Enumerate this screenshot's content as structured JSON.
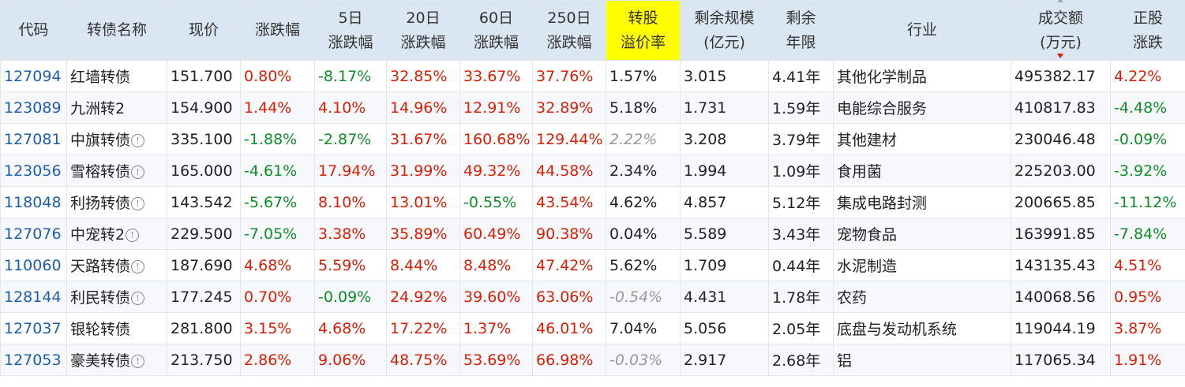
{
  "headers": {
    "code": "代码",
    "name": "转债名称",
    "price": "现价",
    "change": "涨跌幅",
    "chg5_l1": "5日",
    "chg5_l2": "涨跌幅",
    "chg20_l1": "20日",
    "chg20_l2": "涨跌幅",
    "chg60_l1": "60日",
    "chg60_l2": "涨跌幅",
    "chg250_l1": "250日",
    "chg250_l2": "涨跌幅",
    "premium_l1": "转股",
    "premium_l2": "溢价率",
    "scale_l1": "剩余规模",
    "scale_l2": "(亿元)",
    "years_l1": "剩余",
    "years_l2": "年限",
    "industry": "行业",
    "volume_l1": "成交额",
    "volume_l2": "(万元)",
    "stock_l1": "正股",
    "stock_l2": "涨跌"
  },
  "colors": {
    "header_bg": "#dbe6f3",
    "highlight_header": "#ffff00",
    "up": "#d81e06",
    "down": "#128b2a",
    "code_link": "#1f5ea8",
    "muted": "#999999"
  },
  "rows": [
    {
      "code": "127094",
      "name": "红墙转债",
      "info": false,
      "price": "151.700",
      "change": "0.80%",
      "chg5": "-8.17%",
      "chg20": "32.85%",
      "chg60": "33.67%",
      "chg250": "37.76%",
      "premium": "1.57%",
      "premium_muted": false,
      "scale": "3.015",
      "years": "4.41年",
      "industry": "其他化学制品",
      "volume": "495382.17",
      "stock": "4.22%"
    },
    {
      "code": "123089",
      "name": "九洲转2",
      "info": false,
      "price": "154.900",
      "change": "1.44%",
      "chg5": "4.10%",
      "chg20": "14.96%",
      "chg60": "12.91%",
      "chg250": "32.89%",
      "premium": "5.18%",
      "premium_muted": false,
      "scale": "1.731",
      "years": "1.59年",
      "industry": "电能综合服务",
      "volume": "410817.83",
      "stock": "-4.48%"
    },
    {
      "code": "127081",
      "name": "中旗转债",
      "info": true,
      "price": "335.100",
      "change": "-1.88%",
      "chg5": "-2.87%",
      "chg20": "31.67%",
      "chg60": "160.68%",
      "chg250": "129.44%",
      "premium": "2.22%",
      "premium_muted": true,
      "scale": "3.208",
      "years": "3.79年",
      "industry": "其他建材",
      "volume": "230046.48",
      "stock": "-0.09%"
    },
    {
      "code": "123056",
      "name": "雪榕转债",
      "info": true,
      "price": "165.000",
      "change": "-4.61%",
      "chg5": "17.94%",
      "chg20": "31.99%",
      "chg60": "49.32%",
      "chg250": "44.58%",
      "premium": "2.34%",
      "premium_muted": false,
      "scale": "1.994",
      "years": "1.09年",
      "industry": "食用菌",
      "volume": "225203.00",
      "stock": "-3.92%"
    },
    {
      "code": "118048",
      "name": "利扬转债",
      "info": true,
      "price": "143.542",
      "change": "-5.67%",
      "chg5": "8.10%",
      "chg20": "13.01%",
      "chg60": "-0.55%",
      "chg250": "43.54%",
      "premium": "4.62%",
      "premium_muted": false,
      "scale": "4.857",
      "years": "5.12年",
      "industry": "集成电路封测",
      "volume": "200665.85",
      "stock": "-11.12%"
    },
    {
      "code": "127076",
      "name": "中宠转2",
      "info": true,
      "price": "229.500",
      "change": "-7.05%",
      "chg5": "3.38%",
      "chg20": "35.89%",
      "chg60": "60.49%",
      "chg250": "90.38%",
      "premium": "0.04%",
      "premium_muted": false,
      "scale": "5.589",
      "years": "3.43年",
      "industry": "宠物食品",
      "volume": "163991.85",
      "stock": "-7.84%"
    },
    {
      "code": "110060",
      "name": "天路转债",
      "info": true,
      "price": "187.690",
      "change": "4.68%",
      "chg5": "5.59%",
      "chg20": "8.44%",
      "chg60": "8.48%",
      "chg250": "47.42%",
      "premium": "5.62%",
      "premium_muted": false,
      "scale": "1.709",
      "years": "0.44年",
      "industry": "水泥制造",
      "volume": "143135.43",
      "stock": "4.51%"
    },
    {
      "code": "128144",
      "name": "利民转债",
      "info": true,
      "price": "177.245",
      "change": "0.70%",
      "chg5": "-0.09%",
      "chg20": "24.92%",
      "chg60": "39.60%",
      "chg250": "63.06%",
      "premium": "-0.54%",
      "premium_muted": true,
      "scale": "4.431",
      "years": "1.78年",
      "industry": "农药",
      "volume": "140068.56",
      "stock": "0.95%"
    },
    {
      "code": "127037",
      "name": "银轮转债",
      "info": false,
      "price": "281.800",
      "change": "3.15%",
      "chg5": "4.68%",
      "chg20": "17.22%",
      "chg60": "1.37%",
      "chg250": "46.01%",
      "premium": "7.04%",
      "premium_muted": false,
      "scale": "5.056",
      "years": "2.05年",
      "industry": "底盘与发动机系统",
      "volume": "119044.19",
      "stock": "3.87%"
    },
    {
      "code": "127053",
      "name": "豪美转债",
      "info": true,
      "price": "213.750",
      "change": "2.86%",
      "chg5": "9.06%",
      "chg20": "48.75%",
      "chg60": "53.69%",
      "chg250": "66.98%",
      "premium": "-0.03%",
      "premium_muted": true,
      "scale": "2.917",
      "years": "2.68年",
      "industry": "铝",
      "volume": "117065.34",
      "stock": "1.91%"
    }
  ],
  "icons": {
    "info": "info-circle-icon",
    "sort": "sort-desc-icon",
    "info_glyph": "!"
  }
}
